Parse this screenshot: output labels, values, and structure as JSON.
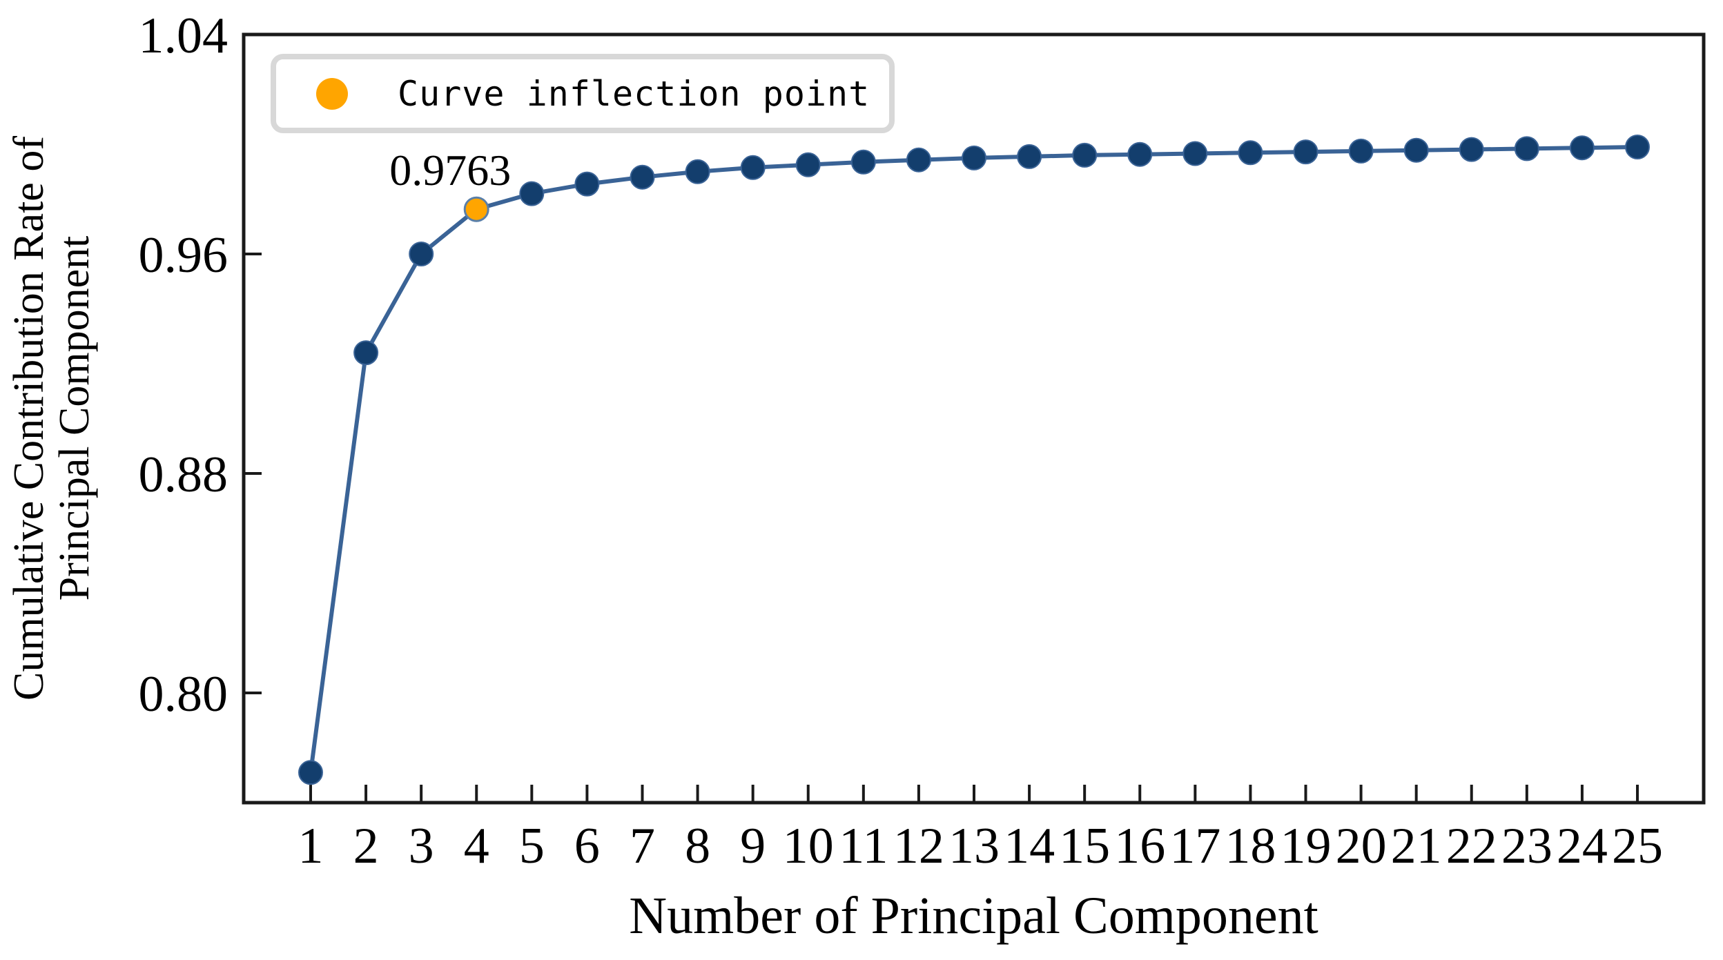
{
  "chart_data": {
    "type": "line",
    "title": "",
    "xlabel": "Number of Principal Component",
    "ylabel_lines": [
      "Cumulative Contribution Rate of",
      "Principal Component"
    ],
    "x": [
      1,
      2,
      3,
      4,
      5,
      6,
      7,
      8,
      9,
      10,
      11,
      12,
      13,
      14,
      15,
      16,
      17,
      18,
      19,
      20,
      21,
      22,
      23,
      24,
      25
    ],
    "xticks": [
      "1",
      "2",
      "3",
      "4",
      "5",
      "6",
      "7",
      "8",
      "9",
      "10",
      "11",
      "12",
      "13",
      "14",
      "15",
      "16",
      "17",
      "18",
      "19",
      "20",
      "21",
      "22",
      "23",
      "24",
      "25"
    ],
    "series": [
      {
        "name": "Cumulative contribution rate",
        "values": [
          0.771,
          0.924,
          0.96,
          0.9763,
          0.982,
          0.9855,
          0.988,
          0.99,
          0.9915,
          0.9925,
          0.9935,
          0.9943,
          0.995,
          0.9955,
          0.996,
          0.9963,
          0.9966,
          0.9969,
          0.9972,
          0.9975,
          0.9978,
          0.9981,
          0.9984,
          0.9987,
          0.999
        ]
      }
    ],
    "ylim": [
      0.76,
      1.04
    ],
    "ytick_values": [
      1.04,
      0.96,
      0.88,
      0.8
    ],
    "ytick_labels": [
      "1.04",
      "0.96",
      "0.88",
      "0.80"
    ],
    "grid": false,
    "legend": {
      "position": "upper-left",
      "entries": [
        {
          "label": "Curve inflection point",
          "marker": "circle",
          "color": "#FFA500"
        }
      ]
    },
    "annotation": {
      "text": "0.9763",
      "x": 4,
      "y": 0.9763
    },
    "inflection_point": {
      "x": 4,
      "value": 0.9763
    },
    "colors": {
      "line": "#3A6396",
      "marker": "#133E6D",
      "marker_edge": "#3A6396",
      "inflection_fill": "#FFA500",
      "inflection_edge": "#5A7FA8",
      "spine": "#1A1A1A",
      "text": "#000000",
      "legend_border": "#D8D8D8"
    }
  }
}
